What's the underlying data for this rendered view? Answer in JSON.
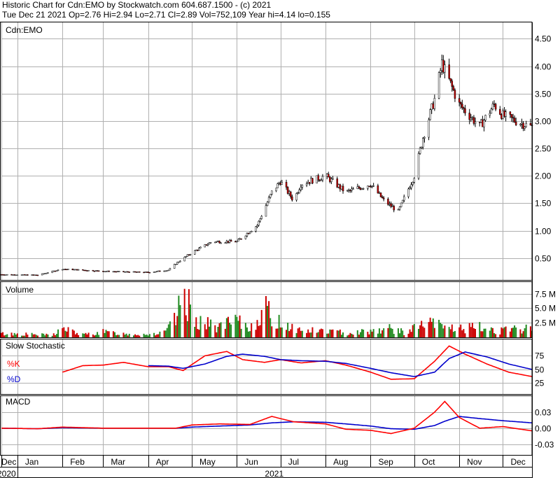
{
  "header": {
    "line1": "Historic Chart for Cdn:EMO by Stockwatch.com 604.687.1500 - (c) 2021",
    "line2": "Tue Dec 21 2021  Op=2.76  Hi=2.94  Lo=2.71  Cl=2.89  Vol=752,109  Year hi=4.14  lo=0.155"
  },
  "chart_data": {
    "type": "line",
    "symbol": "Cdn:EMO",
    "price_panel": {
      "label": "Cdn:EMO",
      "ylim": [
        0.1,
        4.8
      ],
      "yticks": [
        "4.50",
        "4.00",
        "3.50",
        "3.00",
        "2.50",
        "2.00",
        "1.50",
        "1.00",
        "0.50"
      ],
      "ytick_values": [
        4.5,
        4.0,
        3.5,
        3.0,
        2.5,
        2.0,
        1.5,
        1.0,
        0.5
      ],
      "x_dates": [
        "2020-12-21",
        "2021-01-15",
        "2021-02-01",
        "2021-02-15",
        "2021-03-01",
        "2021-03-15",
        "2021-04-01",
        "2021-04-15",
        "2021-04-20",
        "2021-05-01",
        "2021-05-15",
        "2021-06-01",
        "2021-06-15",
        "2021-06-25",
        "2021-07-01",
        "2021-07-10",
        "2021-07-15",
        "2021-08-01",
        "2021-08-15",
        "2021-09-01",
        "2021-09-10",
        "2021-09-20",
        "2021-10-01",
        "2021-10-07",
        "2021-10-15",
        "2021-10-20",
        "2021-11-01",
        "2021-11-15",
        "2021-11-25",
        "2021-12-01",
        "2021-12-10",
        "2021-12-21"
      ],
      "close": [
        0.2,
        0.19,
        0.3,
        0.28,
        0.26,
        0.25,
        0.24,
        0.28,
        0.4,
        0.6,
        0.8,
        0.8,
        1.1,
        1.7,
        1.9,
        1.55,
        1.85,
        2.0,
        1.7,
        1.85,
        1.55,
        1.35,
        2.0,
        2.7,
        3.4,
        4.05,
        3.3,
        2.9,
        3.3,
        3.1,
        3.0,
        2.89
      ]
    },
    "volume_panel": {
      "label": "Volume",
      "yticks": [
        "7.5 M",
        "5.0 M",
        "2.5 M"
      ],
      "ytick_values": [
        7.5,
        5.0,
        2.5
      ],
      "unit": "M",
      "ylim": [
        0,
        9.5
      ],
      "x_dates": [
        "2021-01-01",
        "2021-01-25",
        "2021-02-01",
        "2021-02-15",
        "2021-03-01",
        "2021-03-15",
        "2021-04-01",
        "2021-04-12",
        "2021-04-20",
        "2021-04-24",
        "2021-04-27",
        "2021-05-01",
        "2021-05-10",
        "2021-05-20",
        "2021-06-01",
        "2021-06-10",
        "2021-06-20",
        "2021-06-25",
        "2021-07-05",
        "2021-07-15",
        "2021-08-01",
        "2021-08-15",
        "2021-09-01",
        "2021-09-15",
        "2021-09-25",
        "2021-10-05",
        "2021-10-15",
        "2021-10-20",
        "2021-11-01",
        "2021-11-15",
        "2021-12-01",
        "2021-12-18"
      ],
      "values": [
        0.8,
        0.5,
        2.0,
        0.6,
        1.2,
        0.8,
        0.7,
        1.0,
        4.0,
        8.0,
        9.0,
        5.0,
        3.0,
        2.5,
        3.5,
        2.0,
        7.0,
        4.0,
        3.0,
        1.5,
        1.5,
        1.0,
        1.5,
        2.0,
        1.0,
        2.8,
        3.0,
        2.5,
        2.0,
        2.2,
        1.5,
        2.0
      ]
    },
    "stochastic_panel": {
      "label": "Slow Stochastic",
      "series_labels": [
        "%K",
        "%D"
      ],
      "yticks": [
        "75",
        "50",
        "25"
      ],
      "ytick_values": [
        75,
        50,
        25
      ],
      "ylim": [
        5,
        105
      ],
      "x_dates": [
        "2021-02-01",
        "2021-02-15",
        "2021-03-01",
        "2021-03-15",
        "2021-04-01",
        "2021-04-15",
        "2021-04-25",
        "2021-05-10",
        "2021-05-25",
        "2021-06-05",
        "2021-06-20",
        "2021-07-01",
        "2021-07-15",
        "2021-08-01",
        "2021-08-15",
        "2021-09-01",
        "2021-09-15",
        "2021-10-01",
        "2021-10-15",
        "2021-10-25",
        "2021-11-05",
        "2021-11-20",
        "2021-12-05",
        "2021-12-21"
      ],
      "k": [
        45,
        57,
        58,
        63,
        55,
        55,
        48,
        75,
        83,
        68,
        63,
        68,
        62,
        66,
        58,
        45,
        32,
        33,
        65,
        93,
        78,
        60,
        45,
        37
      ],
      "d": [
        null,
        null,
        null,
        null,
        57,
        56,
        52,
        60,
        74,
        78,
        74,
        68,
        66,
        65,
        61,
        52,
        44,
        37,
        45,
        70,
        82,
        73,
        60,
        50
      ]
    },
    "macd_panel": {
      "label": "MACD",
      "yticks": [
        "0.03",
        "0.00",
        "-0.03"
      ],
      "ytick_values": [
        0.03,
        0.0,
        -0.03
      ],
      "ylim": [
        -0.05,
        0.06
      ],
      "x_dates": [
        "2020-12-21",
        "2021-01-15",
        "2021-02-01",
        "2021-03-01",
        "2021-04-01",
        "2021-04-20",
        "2021-05-01",
        "2021-05-20",
        "2021-06-10",
        "2021-06-25",
        "2021-07-10",
        "2021-08-01",
        "2021-08-15",
        "2021-09-01",
        "2021-09-15",
        "2021-10-01",
        "2021-10-15",
        "2021-10-22",
        "2021-11-01",
        "2021-11-15",
        "2021-12-01",
        "2021-12-21"
      ],
      "macd_line": [
        0.0,
        -0.001,
        0.002,
        0.0,
        0.0,
        0.0,
        0.006,
        0.008,
        0.007,
        0.022,
        0.012,
        0.008,
        -0.002,
        -0.004,
        -0.01,
        0.0,
        0.03,
        0.05,
        0.02,
        0.0,
        0.003,
        -0.005
      ],
      "signal_line": [
        0.0,
        -0.001,
        0.001,
        0.0,
        0.0,
        0.0,
        0.002,
        0.004,
        0.006,
        0.01,
        0.012,
        0.011,
        0.008,
        0.004,
        -0.001,
        -0.002,
        0.005,
        0.013,
        0.022,
        0.018,
        0.014,
        0.01
      ]
    },
    "x_axis": {
      "months": [
        "Dec",
        "Jan",
        "Feb",
        "Mar",
        "Apr",
        "May",
        "Jun",
        "Jul",
        "Aug",
        "Sep",
        "Oct",
        "Nov",
        "Dec"
      ],
      "month_dates": [
        "2020-12-21",
        "2021-01-01",
        "2021-02-01",
        "2021-03-01",
        "2021-04-01",
        "2021-05-01",
        "2021-06-01",
        "2021-07-01",
        "2021-08-01",
        "2021-09-01",
        "2021-10-01",
        "2021-11-01",
        "2021-12-01"
      ],
      "years": [
        "2020",
        "2021"
      ]
    },
    "colors": {
      "up": "#228B22",
      "down": "#cc0000",
      "k_line": "#ff0000",
      "d_line": "#0000cc",
      "signal_line": "#0000cc",
      "macd_line": "#ff0000",
      "grid": "#b0b0b0"
    },
    "grid": true
  }
}
